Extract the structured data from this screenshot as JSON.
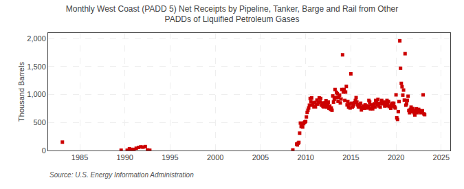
{
  "chart_data": {
    "type": "scatter",
    "title": "Monthly West Coast (PADD 5) Net Receipts by Pipeline, Tanker, Barge and Rail from Other\nPADDs of Liquified Petroleum Gases",
    "ylabel": "Thousand Barrels",
    "source": "Source: U.S. Energy Information Administration",
    "color": "#cc0000",
    "marker": "square",
    "grid": true,
    "xlim": [
      1981.5,
      2026
    ],
    "ylim": [
      0,
      2100
    ],
    "xticks": [
      1985,
      1990,
      1995,
      2000,
      2005,
      2010,
      2015,
      2020,
      2025
    ],
    "yticks": [
      0,
      500,
      {
        "value": 1000,
        "label": "1,000"
      },
      {
        "value": 1500,
        "label": "1,500"
      },
      {
        "value": 2000,
        "label": "2,000"
      }
    ],
    "x": [
      1983.08,
      1989.58,
      1990.25,
      1990.5,
      1990.75,
      1991.0,
      1991.25,
      1991.5,
      1991.75,
      1992.0,
      1992.25,
      1992.5,
      1992.75,
      2008.58,
      2009.0,
      2009.083,
      2009.167,
      2009.25,
      2009.333,
      2009.417,
      2009.5,
      2009.583,
      2009.667,
      2009.75,
      2009.833,
      2009.917,
      2010.0,
      2010.083,
      2010.167,
      2010.25,
      2010.333,
      2010.417,
      2010.5,
      2010.583,
      2010.667,
      2010.75,
      2010.833,
      2010.917,
      2011.0,
      2011.083,
      2011.167,
      2011.25,
      2011.333,
      2011.417,
      2011.5,
      2011.583,
      2011.667,
      2011.75,
      2011.833,
      2011.917,
      2012.0,
      2012.083,
      2012.167,
      2012.25,
      2012.333,
      2012.417,
      2012.5,
      2012.583,
      2012.667,
      2012.75,
      2012.833,
      2012.917,
      2013.0,
      2013.083,
      2013.167,
      2013.25,
      2013.333,
      2013.417,
      2013.5,
      2013.583,
      2013.667,
      2013.75,
      2013.833,
      2013.917,
      2014.0,
      2014.083,
      2014.167,
      2014.25,
      2014.333,
      2014.417,
      2014.5,
      2014.583,
      2014.667,
      2014.75,
      2014.833,
      2014.917,
      2015.0,
      2015.083,
      2015.167,
      2015.25,
      2015.333,
      2015.417,
      2015.5,
      2015.583,
      2015.667,
      2015.75,
      2015.833,
      2015.917,
      2016.0,
      2016.083,
      2016.167,
      2016.25,
      2016.333,
      2016.417,
      2016.5,
      2016.583,
      2016.667,
      2016.75,
      2016.833,
      2016.917,
      2017.0,
      2017.083,
      2017.167,
      2017.25,
      2017.333,
      2017.417,
      2017.5,
      2017.583,
      2017.667,
      2017.75,
      2017.833,
      2017.917,
      2018.0,
      2018.083,
      2018.167,
      2018.25,
      2018.333,
      2018.417,
      2018.5,
      2018.583,
      2018.667,
      2018.75,
      2018.833,
      2018.917,
      2019.0,
      2019.083,
      2019.167,
      2019.25,
      2019.333,
      2019.417,
      2019.5,
      2019.583,
      2019.667,
      2019.75,
      2019.833,
      2019.917,
      2020.0,
      2020.083,
      2020.167,
      2020.25,
      2020.333,
      2020.417,
      2020.5,
      2020.583,
      2020.667,
      2020.75,
      2020.833,
      2020.917,
      2021.0,
      2021.083,
      2021.167,
      2021.25,
      2021.333,
      2021.417,
      2021.5,
      2021.583,
      2021.667,
      2021.75,
      2021.833,
      2021.917,
      2022.0,
      2022.083,
      2022.167,
      2022.25,
      2022.333,
      2022.417,
      2022.5,
      2022.583,
      2022.667,
      2022.75,
      2022.833,
      2022.917,
      2023.0,
      2023.083,
      2023.167
    ],
    "values": [
      150,
      5,
      5,
      30,
      20,
      20,
      40,
      55,
      65,
      60,
      70,
      10,
      5,
      10,
      115,
      100,
      130,
      145,
      310,
      490,
      430,
      460,
      420,
      480,
      500,
      510,
      520,
      600,
      680,
      720,
      760,
      810,
      930,
      870,
      940,
      810,
      850,
      780,
      860,
      780,
      830,
      900,
      830,
      860,
      940,
      870,
      930,
      810,
      850,
      790,
      780,
      820,
      855,
      890,
      775,
      815,
      865,
      755,
      795,
      735,
      760,
      720,
      975,
      865,
      915,
      1090,
      945,
      1040,
      1015,
      880,
      950,
      990,
      850,
      920,
      1090,
      1710,
      1045,
      1090,
      895,
      1045,
      1145,
      815,
      875,
      775,
      830,
      760,
      1370,
      845,
      775,
      795,
      825,
      855,
      895,
      945,
      865,
      815,
      780,
      810,
      775,
      845,
      725,
      755,
      795,
      775,
      755,
      815,
      790,
      780,
      760,
      800,
      895,
      865,
      745,
      815,
      775,
      745,
      795,
      835,
      775,
      895,
      870,
      820,
      915,
      795,
      845,
      775,
      845,
      895,
      835,
      855,
      865,
      795,
      840,
      800,
      895,
      845,
      875,
      785,
      795,
      755,
      815,
      845,
      795,
      845,
      780,
      760,
      995,
      585,
      555,
      695,
      875,
      1960,
      1470,
      1200,
      1140,
      990,
      1080,
      900,
      1730,
      810,
      835,
      895,
      970,
      715,
      675,
      735,
      775,
      695,
      750,
      720,
      675,
      635,
      695,
      745,
      675,
      695,
      735,
      715,
      695,
      675,
      690,
      710,
      995,
      655,
      640
    ]
  }
}
